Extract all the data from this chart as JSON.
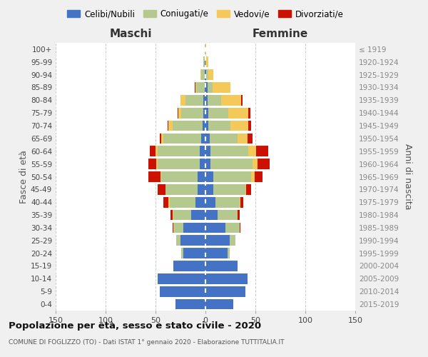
{
  "age_groups": [
    "0-4",
    "5-9",
    "10-14",
    "15-19",
    "20-24",
    "25-29",
    "30-34",
    "35-39",
    "40-44",
    "45-49",
    "50-54",
    "55-59",
    "60-64",
    "65-69",
    "70-74",
    "75-79",
    "80-84",
    "85-89",
    "90-94",
    "95-99",
    "100+"
  ],
  "birth_years": [
    "2015-2019",
    "2010-2014",
    "2005-2009",
    "2000-2004",
    "1995-1999",
    "1990-1994",
    "1985-1989",
    "1980-1984",
    "1975-1979",
    "1970-1974",
    "1965-1969",
    "1960-1964",
    "1955-1959",
    "1950-1954",
    "1945-1949",
    "1940-1944",
    "1935-1939",
    "1930-1934",
    "1925-1929",
    "1920-1924",
    "≤ 1919"
  ],
  "maschi": {
    "celibi": [
      30,
      46,
      48,
      32,
      22,
      25,
      22,
      14,
      10,
      8,
      8,
      6,
      6,
      4,
      3,
      2,
      2,
      1,
      1,
      1,
      0
    ],
    "coniugati": [
      0,
      0,
      0,
      0,
      2,
      4,
      10,
      18,
      26,
      32,
      36,
      42,
      42,
      38,
      30,
      22,
      18,
      8,
      3,
      1,
      1
    ],
    "vedovi": [
      0,
      0,
      0,
      0,
      0,
      0,
      0,
      1,
      1,
      0,
      1,
      1,
      2,
      2,
      4,
      3,
      5,
      1,
      1,
      0,
      0
    ],
    "divorziati": [
      0,
      0,
      0,
      0,
      0,
      0,
      1,
      2,
      5,
      8,
      12,
      8,
      6,
      2,
      1,
      1,
      0,
      1,
      0,
      0,
      0
    ]
  },
  "femmine": {
    "nubili": [
      28,
      40,
      42,
      32,
      22,
      24,
      20,
      12,
      10,
      8,
      8,
      5,
      5,
      4,
      3,
      3,
      2,
      2,
      1,
      0,
      0
    ],
    "coniugate": [
      0,
      0,
      0,
      0,
      2,
      6,
      14,
      20,
      24,
      32,
      38,
      42,
      38,
      28,
      22,
      20,
      14,
      5,
      2,
      1,
      0
    ],
    "vedove": [
      0,
      0,
      0,
      0,
      0,
      0,
      0,
      0,
      1,
      1,
      3,
      5,
      8,
      10,
      18,
      20,
      20,
      18,
      5,
      2,
      1
    ],
    "divorziate": [
      0,
      0,
      0,
      0,
      0,
      0,
      1,
      2,
      3,
      5,
      8,
      12,
      12,
      5,
      3,
      2,
      1,
      0,
      0,
      0,
      0
    ]
  },
  "color_celibi": "#4472c4",
  "color_coniugati": "#b5c98e",
  "color_vedovi": "#f5c85a",
  "color_divorziati": "#cc1100",
  "xlim": 150,
  "title": "Popolazione per età, sesso e stato civile - 2020",
  "subtitle": "COMUNE DI FOGLIZZO (TO) - Dati ISTAT 1° gennaio 2020 - Elaborazione TUTTITALIA.IT",
  "ylabel_left": "Fasce di età",
  "ylabel_right": "Anni di nascita",
  "xlabel_left": "Maschi",
  "xlabel_right": "Femmine",
  "bg_color": "#f0f0f0",
  "plot_bg_color": "#ffffff"
}
